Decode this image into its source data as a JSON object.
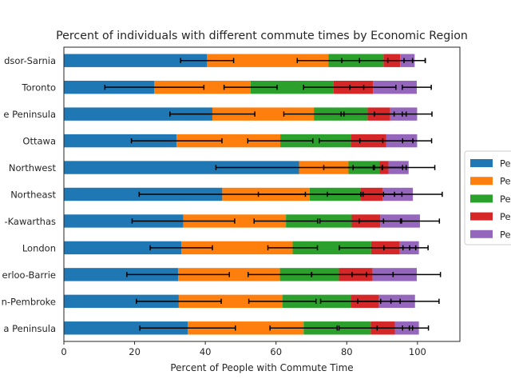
{
  "chart_data": {
    "type": "bar",
    "orientation": "horizontal",
    "stacked": true,
    "title": "Percent of individuals with different commute times by Economic Region",
    "xlabel": "Percent of People with Commute Time",
    "ylabel": "",
    "xlim": [
      0,
      112
    ],
    "xticks": [
      0,
      20,
      40,
      60,
      80,
      100
    ],
    "grid": false,
    "legend_position": "right",
    "categories": [
      "Stratford-Bruce Peninsula",
      "Muskoka-Kawarthas",
      "Kitchener-Waterloo-Barrie",
      "Hamilton-Niagara Peninsula",
      "Northeast",
      "Northwest",
      "Ottawa",
      "Windsor-Sarnia",
      "Kingston-Pembroke",
      "London",
      "Toronto"
    ],
    "category_labels_visible": [
      "a Peninsula",
      "n-Pembroke",
      "erloo-Barrie",
      "London",
      "-Kawarthas",
      "Northeast",
      "Northwest",
      "Ottawa",
      "e Peninsula",
      "Toronto",
      "dsor-Sarnia"
    ],
    "series": [
      {
        "name": "Pe",
        "color": "#1f77b4",
        "values": [
          35.0,
          32.5,
          32.3,
          33.2,
          33.8,
          44.8,
          66.5,
          31.9,
          42.0,
          25.6,
          40.5
        ],
        "errors": [
          13.5,
          12.0,
          14.5,
          8.8,
          14.5,
          23.5,
          23.5,
          12.8,
          12.0,
          14.0,
          7.5
        ]
      },
      {
        "name": "Pe",
        "color": "#ff7f0e",
        "values": [
          32.8,
          29.3,
          28.8,
          31.5,
          29.0,
          24.7,
          14.0,
          29.3,
          28.7,
          27.2,
          34.3
        ],
        "errors": [
          9.5,
          9.5,
          9.0,
          7.0,
          9.0,
          14.5,
          7.0,
          9.2,
          8.5,
          7.5,
          8.8
        ]
      },
      {
        "name": "Pe",
        "color": "#2ca02c",
        "values": [
          19.0,
          19.3,
          16.7,
          22.2,
          18.6,
          14.5,
          8.8,
          20.0,
          15.2,
          23.5,
          15.6
        ],
        "errors": [
          9.0,
          8.5,
          7.8,
          9.0,
          9.0,
          9.5,
          7.5,
          9.0,
          7.5,
          8.5,
          11.8
        ]
      },
      {
        "name": "Pe",
        "color": "#d62728",
        "values": [
          6.8,
          8.0,
          9.5,
          8.1,
          8.1,
          6.1,
          2.5,
          10.0,
          6.4,
          11.1,
          4.7
        ],
        "errors": [
          5.0,
          6.0,
          5.8,
          4.5,
          6.0,
          5.5,
          4.0,
          7.5,
          4.5,
          6.5,
          3.5
        ]
      },
      {
        "name": "Pe",
        "color": "#9467bd",
        "values": [
          6.8,
          10.2,
          12.5,
          5.4,
          11.2,
          8.6,
          5.7,
          8.7,
          7.6,
          12.4,
          4.1
        ],
        "errors": [
          2.7,
          6.8,
          6.7,
          2.6,
          5.5,
          8.3,
          7.4,
          4.1,
          4.2,
          4.1,
          3.0
        ]
      }
    ]
  }
}
